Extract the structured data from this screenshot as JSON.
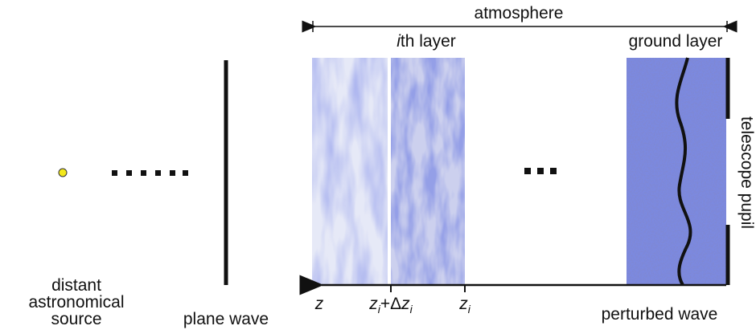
{
  "title": "atmosphere",
  "layer_label": {
    "index": "i",
    "text": "th layer"
  },
  "ground_label": "ground layer",
  "pupil_label": "telescope pupil",
  "source_label": [
    "distant",
    "astronomical",
    "source"
  ],
  "plane_wave_label": "plane wave",
  "perturbed_label": "perturbed wave",
  "z_labels": {
    "z": "z",
    "zi_dz": {
      "z": "z",
      "sub": "i",
      "plus": "+Δ",
      "z2": "z",
      "sub2": "i"
    },
    "zi": {
      "z": "z",
      "sub": "i"
    }
  }
}
